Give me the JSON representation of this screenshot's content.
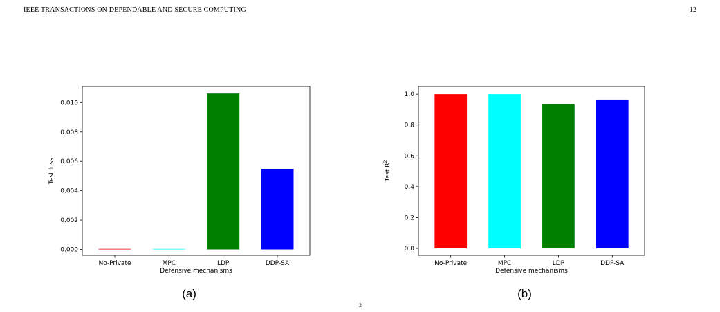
{
  "header": {
    "journal": "IEEE TRANSACTIONS ON DEPENDABLE AND SECURE COMPUTING",
    "page_number": "12"
  },
  "bottom_fragment": "2",
  "chart_data": [
    {
      "type": "bar",
      "caption": "(a)",
      "xlabel": "Defensive mechanisms",
      "ylabel": "Test loss",
      "categories": [
        "No-Private",
        "MPC",
        "LDP",
        "DDP-SA"
      ],
      "values": [
        3e-05,
        2e-05,
        0.01062,
        0.00548
      ],
      "colors": [
        "#ff0000",
        "#00ffff",
        "#008000",
        "#0000ff"
      ],
      "ylim": [
        -0.0004,
        0.0111
      ],
      "yticks": [
        0.0,
        0.002,
        0.004,
        0.006,
        0.008,
        0.01
      ],
      "ytick_labels": [
        "0.000",
        "0.002",
        "0.004",
        "0.006",
        "0.008",
        "0.010"
      ],
      "grid": false
    },
    {
      "type": "bar",
      "caption": "(b)",
      "xlabel": "Defensive mechanisms",
      "ylabel": "Test R",
      "ylabel_superscript": "2",
      "categories": [
        "No-Private",
        "MPC",
        "LDP",
        "DDP-SA"
      ],
      "values": [
        1.0,
        1.0,
        0.935,
        0.965
      ],
      "colors": [
        "#ff0000",
        "#00ffff",
        "#008000",
        "#0000ff"
      ],
      "ylim": [
        -0.045,
        1.05
      ],
      "yticks": [
        0.0,
        0.2,
        0.4,
        0.6,
        0.8,
        1.0
      ],
      "ytick_labels": [
        "0.0",
        "0.2",
        "0.4",
        "0.6",
        "0.8",
        "1.0"
      ],
      "grid": false
    }
  ]
}
